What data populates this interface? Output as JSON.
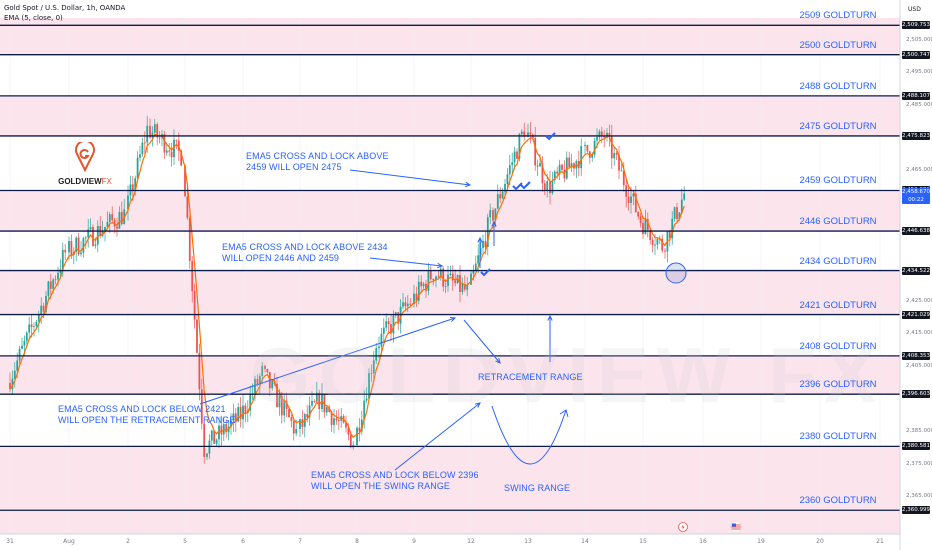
{
  "header": {
    "symbol_line": "Gold Spot / U.S. Dollar, 1h, OANDA",
    "indicator_line": "EMA (5, close, 0)"
  },
  "logo": {
    "brand": "GOLDVIEW",
    "suffix": "FX"
  },
  "watermark": "GOLDVIEW FX",
  "currency": "USD",
  "price_ticks": [
    "2,505.000",
    "2,495.000",
    "2,485.000",
    "2,465.000",
    "2,425.000",
    "2,415.000",
    "2,405.000",
    "2,385.000",
    "2,375.000",
    "2,365.000"
  ],
  "x_ticks": [
    "31",
    "Aug",
    "2",
    "5",
    "6",
    "7",
    "8",
    "9",
    "12",
    "13",
    "14",
    "15",
    "16",
    "19",
    "20",
    "21"
  ],
  "levels": [
    {
      "label": "2509 GOLDTURN",
      "tag": "2,509.753",
      "price": 2509.753
    },
    {
      "label": "2500 GOLDTURN",
      "tag": "2,500.747",
      "price": 2500.747
    },
    {
      "label": "2488 GOLDTURN",
      "tag": "2,488.107",
      "price": 2488.107
    },
    {
      "label": "2475 GOLDTURN",
      "tag": "2,475.823",
      "price": 2475.823
    },
    {
      "label": "2459 GOLDTURN",
      "tag": "2,459.089",
      "price": 2459.089
    },
    {
      "label": "2446 GOLDTURN",
      "tag": "2,446.638",
      "price": 2446.638
    },
    {
      "label": "2434 GOLDTURN",
      "tag": "2,434.522",
      "price": 2434.522
    },
    {
      "label": "2421 GOLDTURN",
      "tag": "2,421.029",
      "price": 2421.029
    },
    {
      "label": "2408 GOLDTURN",
      "tag": "2,408.353",
      "price": 2408.353
    },
    {
      "label": "2396 GOLDTURN",
      "tag": "2,396.603",
      "price": 2396.603
    },
    {
      "label": "2380 GOLDTURN",
      "tag": "2,380.581",
      "price": 2380.581
    },
    {
      "label": "2360 GOLDTURN",
      "tag": "2,360.999",
      "price": 2360.999
    }
  ],
  "current_price": {
    "price": "2,458.670",
    "countdown": "00:22"
  },
  "annotations": {
    "a1": [
      "EMA5 CROSS AND LOCK ABOVE",
      "2459 WILL OPEN 2475"
    ],
    "a2": [
      "EMA5 CROSS AND LOCK ABOVE 2434",
      "WILL OPEN 2446 AND 2459"
    ],
    "a3": [
      "EMA5 CROSS AND LOCK BELOW 2421",
      "WILL OPEN THE RETRACEMENT RANGE"
    ],
    "a4": [
      "EMA5 CROSS AND LOCK BELOW 2396",
      "WILL OPEN THE SWING RANGE"
    ],
    "retracement": "RETRACEMENT RANGE",
    "swing": "SWING RANGE"
  },
  "colors": {
    "up": "#26a69a",
    "down": "#ef5350",
    "ema": "#ff6d00",
    "level_line": "#0d1b4c",
    "zone_fill": "#fce4ec",
    "annotation": "#2962ff"
  },
  "chart_data": {
    "type": "candlestick",
    "title": "Gold Spot / U.S. Dollar, 1h, OANDA",
    "indicator": "EMA (5, close, 0)",
    "ylim": [
      2358,
      2512
    ],
    "x_categories": [
      "31",
      "Aug",
      "2",
      "5",
      "6",
      "7",
      "8",
      "9",
      "12",
      "13",
      "14",
      "15",
      "16",
      "19",
      "20",
      "21"
    ],
    "price_path": [
      [
        "31",
        2400
      ],
      [
        "Aug",
        2440
      ],
      [
        "2",
        2452
      ],
      [
        "2",
        2478
      ],
      [
        "5",
        2470
      ],
      [
        "5",
        2380
      ],
      [
        "6",
        2390
      ],
      [
        "6",
        2403
      ],
      [
        "7",
        2385
      ],
      [
        "7",
        2395
      ],
      [
        "8",
        2382
      ],
      [
        "8",
        2412
      ],
      [
        "9",
        2425
      ],
      [
        "9",
        2434
      ],
      [
        "12",
        2428
      ],
      [
        "12",
        2450
      ],
      [
        "13",
        2478
      ],
      [
        "13",
        2460
      ],
      [
        "14",
        2470
      ],
      [
        "14",
        2476
      ],
      [
        "15",
        2450
      ],
      [
        "15",
        2442
      ],
      [
        "15",
        2458
      ],
      [
        "16",
        2446
      ],
      [
        "16",
        2458.67
      ]
    ],
    "series": [
      {
        "name": "EMA (5, close, 0)"
      }
    ]
  }
}
